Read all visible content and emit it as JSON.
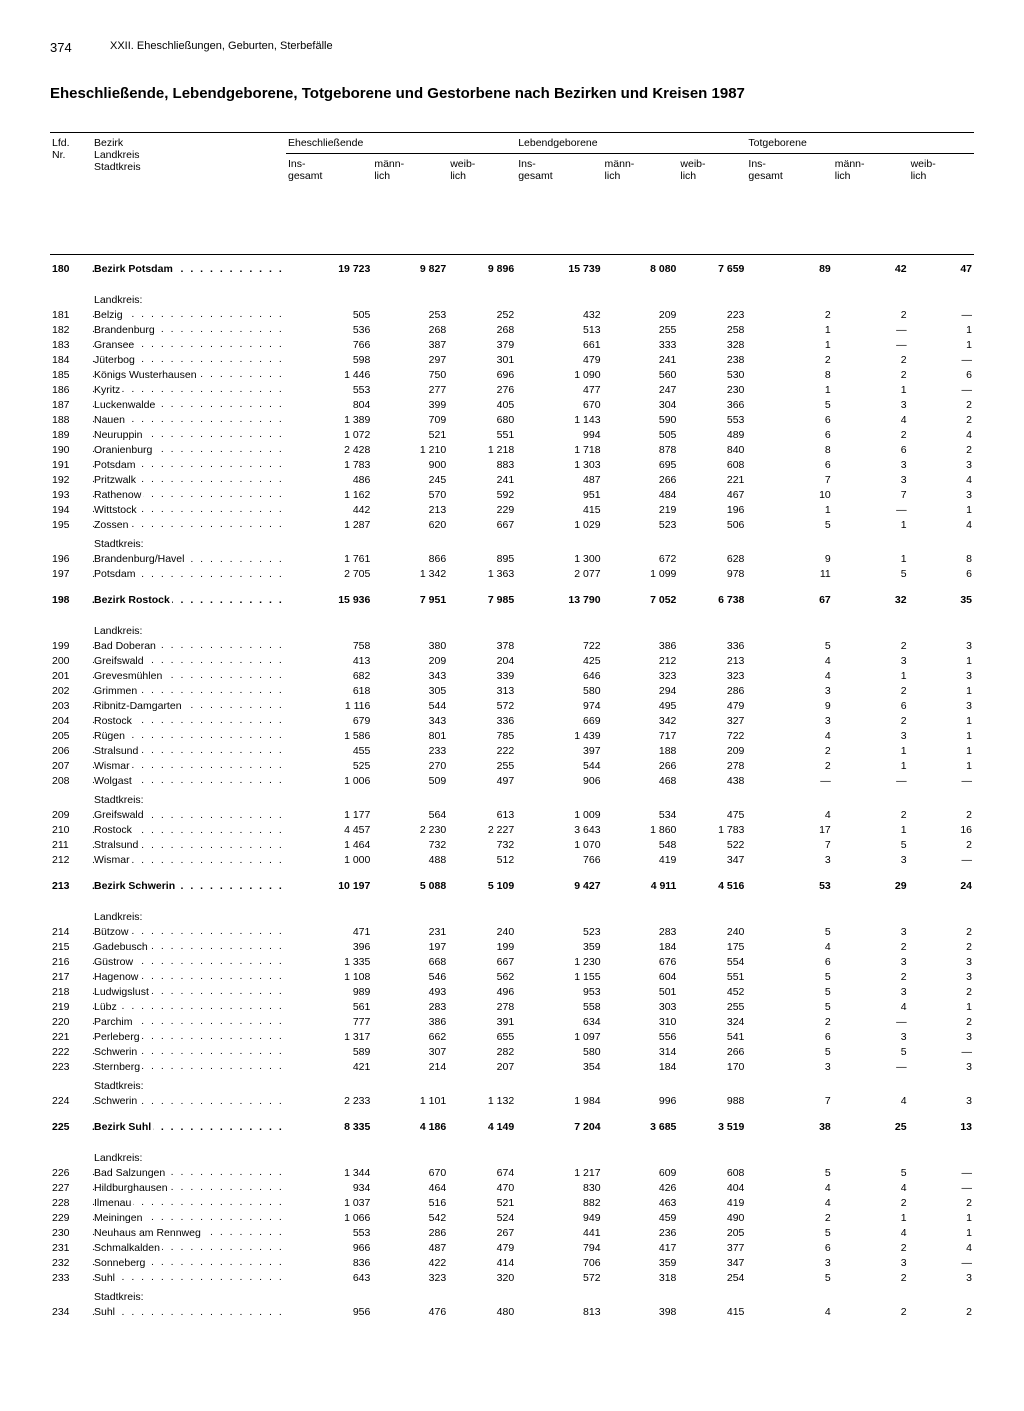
{
  "page_number": "374",
  "chapter": "XXII. Eheschließungen, Geburten, Sterbefälle",
  "title": "Eheschließende, Lebendgeborene, Totgeborene und Gestorbene nach Bezirken und Kreisen 1987",
  "header": {
    "col_lfd": "Lfd.\nNr.",
    "col_bezirk": "Bezirk\nLandkreis\nStadtkreis",
    "group1": "Eheschließende",
    "group2": "Lebendgeborene",
    "group3": "Totgeborene",
    "sub_ins": "Ins-\ngesamt",
    "sub_mann": "männ-\nlich",
    "sub_weib": "weib-\nlich"
  },
  "rows": [
    {
      "type": "data-start",
      "lfd": "180",
      "name": "Bezirk Potsdam",
      "bold": true,
      "dots": true,
      "v": [
        "19 723",
        "9 827",
        "9 896",
        "15 739",
        "8 080",
        "7 659",
        "89",
        "42",
        "47"
      ]
    },
    {
      "type": "spacer"
    },
    {
      "type": "label",
      "name": "Landkreis:"
    },
    {
      "type": "data",
      "lfd": "181",
      "name": "Belzig",
      "dots": true,
      "v": [
        "505",
        "253",
        "252",
        "432",
        "209",
        "223",
        "2",
        "2",
        "—"
      ]
    },
    {
      "type": "data",
      "lfd": "182",
      "name": "Brandenburg",
      "dots": true,
      "v": [
        "536",
        "268",
        "268",
        "513",
        "255",
        "258",
        "1",
        "—",
        "1"
      ]
    },
    {
      "type": "data",
      "lfd": "183",
      "name": "Gransee",
      "dots": true,
      "v": [
        "766",
        "387",
        "379",
        "661",
        "333",
        "328",
        "1",
        "—",
        "1"
      ]
    },
    {
      "type": "data",
      "lfd": "184",
      "name": "Jüterbog",
      "dots": true,
      "v": [
        "598",
        "297",
        "301",
        "479",
        "241",
        "238",
        "2",
        "2",
        "—"
      ]
    },
    {
      "type": "data",
      "lfd": "185",
      "name": "Königs Wusterhausen",
      "dots": true,
      "v": [
        "1 446",
        "750",
        "696",
        "1 090",
        "560",
        "530",
        "8",
        "2",
        "6"
      ]
    },
    {
      "type": "data",
      "lfd": "186",
      "name": "Kyritz",
      "dots": true,
      "v": [
        "553",
        "277",
        "276",
        "477",
        "247",
        "230",
        "1",
        "1",
        "—"
      ]
    },
    {
      "type": "data",
      "lfd": "187",
      "name": "Luckenwalde",
      "dots": true,
      "v": [
        "804",
        "399",
        "405",
        "670",
        "304",
        "366",
        "5",
        "3",
        "2"
      ]
    },
    {
      "type": "data",
      "lfd": "188",
      "name": "Nauen",
      "dots": true,
      "v": [
        "1 389",
        "709",
        "680",
        "1 143",
        "590",
        "553",
        "6",
        "4",
        "2"
      ]
    },
    {
      "type": "data",
      "lfd": "189",
      "name": "Neuruppin",
      "dots": true,
      "v": [
        "1 072",
        "521",
        "551",
        "994",
        "505",
        "489",
        "6",
        "2",
        "4"
      ]
    },
    {
      "type": "data",
      "lfd": "190",
      "name": "Oranienburg",
      "dots": true,
      "v": [
        "2 428",
        "1 210",
        "1 218",
        "1 718",
        "878",
        "840",
        "8",
        "6",
        "2"
      ]
    },
    {
      "type": "data",
      "lfd": "191",
      "name": "Potsdam",
      "dots": true,
      "v": [
        "1 783",
        "900",
        "883",
        "1 303",
        "695",
        "608",
        "6",
        "3",
        "3"
      ]
    },
    {
      "type": "data",
      "lfd": "192",
      "name": "Pritzwalk",
      "dots": true,
      "v": [
        "486",
        "245",
        "241",
        "487",
        "266",
        "221",
        "7",
        "3",
        "4"
      ]
    },
    {
      "type": "data",
      "lfd": "193",
      "name": "Rathenow",
      "dots": true,
      "v": [
        "1 162",
        "570",
        "592",
        "951",
        "484",
        "467",
        "10",
        "7",
        "3"
      ]
    },
    {
      "type": "data",
      "lfd": "194",
      "name": "Wittstock",
      "dots": true,
      "v": [
        "442",
        "213",
        "229",
        "415",
        "219",
        "196",
        "1",
        "—",
        "1"
      ]
    },
    {
      "type": "data",
      "lfd": "195",
      "name": "Zossen",
      "dots": true,
      "v": [
        "1 287",
        "620",
        "667",
        "1 029",
        "523",
        "506",
        "5",
        "1",
        "4"
      ]
    },
    {
      "type": "label",
      "name": "Stadtkreis:"
    },
    {
      "type": "data",
      "lfd": "196",
      "name": "Brandenburg/Havel",
      "dots": true,
      "v": [
        "1 761",
        "866",
        "895",
        "1 300",
        "672",
        "628",
        "9",
        "1",
        "8"
      ]
    },
    {
      "type": "data",
      "lfd": "197",
      "name": "Potsdam",
      "dots": true,
      "v": [
        "2 705",
        "1 342",
        "1 363",
        "2 077",
        "1 099",
        "978",
        "11",
        "5",
        "6"
      ]
    },
    {
      "type": "spacer"
    },
    {
      "type": "data",
      "lfd": "198",
      "name": "Bezirk Rostock",
      "bold": true,
      "dots": true,
      "v": [
        "15 936",
        "7 951",
        "7 985",
        "13 790",
        "7 052",
        "6 738",
        "67",
        "32",
        "35"
      ]
    },
    {
      "type": "spacer"
    },
    {
      "type": "label",
      "name": "Landkreis:"
    },
    {
      "type": "data",
      "lfd": "199",
      "name": "Bad Doberan",
      "dots": true,
      "v": [
        "758",
        "380",
        "378",
        "722",
        "386",
        "336",
        "5",
        "2",
        "3"
      ]
    },
    {
      "type": "data",
      "lfd": "200",
      "name": "Greifswald",
      "dots": true,
      "v": [
        "413",
        "209",
        "204",
        "425",
        "212",
        "213",
        "4",
        "3",
        "1"
      ]
    },
    {
      "type": "data",
      "lfd": "201",
      "name": "Grevesmühlen",
      "dots": true,
      "v": [
        "682",
        "343",
        "339",
        "646",
        "323",
        "323",
        "4",
        "1",
        "3"
      ]
    },
    {
      "type": "data",
      "lfd": "202",
      "name": "Grimmen",
      "dots": true,
      "v": [
        "618",
        "305",
        "313",
        "580",
        "294",
        "286",
        "3",
        "2",
        "1"
      ]
    },
    {
      "type": "data",
      "lfd": "203",
      "name": "Ribnitz-Damgarten",
      "dots": true,
      "v": [
        "1 116",
        "544",
        "572",
        "974",
        "495",
        "479",
        "9",
        "6",
        "3"
      ]
    },
    {
      "type": "data",
      "lfd": "204",
      "name": "Rostock",
      "dots": true,
      "v": [
        "679",
        "343",
        "336",
        "669",
        "342",
        "327",
        "3",
        "2",
        "1"
      ]
    },
    {
      "type": "data",
      "lfd": "205",
      "name": "Rügen",
      "dots": true,
      "v": [
        "1 586",
        "801",
        "785",
        "1 439",
        "717",
        "722",
        "4",
        "3",
        "1"
      ]
    },
    {
      "type": "data",
      "lfd": "206",
      "name": "Stralsund",
      "dots": true,
      "v": [
        "455",
        "233",
        "222",
        "397",
        "188",
        "209",
        "2",
        "1",
        "1"
      ]
    },
    {
      "type": "data",
      "lfd": "207",
      "name": "Wismar",
      "dots": true,
      "v": [
        "525",
        "270",
        "255",
        "544",
        "266",
        "278",
        "2",
        "1",
        "1"
      ]
    },
    {
      "type": "data",
      "lfd": "208",
      "name": "Wolgast",
      "dots": true,
      "v": [
        "1 006",
        "509",
        "497",
        "906",
        "468",
        "438",
        "—",
        "—",
        "—"
      ]
    },
    {
      "type": "label",
      "name": "Stadtkreis:"
    },
    {
      "type": "data",
      "lfd": "209",
      "name": "Greifswald",
      "dots": true,
      "v": [
        "1 177",
        "564",
        "613",
        "1 009",
        "534",
        "475",
        "4",
        "2",
        "2"
      ]
    },
    {
      "type": "data",
      "lfd": "210",
      "name": "Rostock",
      "dots": true,
      "v": [
        "4 457",
        "2 230",
        "2 227",
        "3 643",
        "1 860",
        "1 783",
        "17",
        "1",
        "16"
      ]
    },
    {
      "type": "data",
      "lfd": "211",
      "name": "Stralsund",
      "dots": true,
      "v": [
        "1 464",
        "732",
        "732",
        "1 070",
        "548",
        "522",
        "7",
        "5",
        "2"
      ]
    },
    {
      "type": "data",
      "lfd": "212",
      "name": "Wismar",
      "dots": true,
      "v": [
        "1 000",
        "488",
        "512",
        "766",
        "419",
        "347",
        "3",
        "3",
        "—"
      ]
    },
    {
      "type": "spacer"
    },
    {
      "type": "data",
      "lfd": "213",
      "name": "Bezirk Schwerin",
      "bold": true,
      "dots": true,
      "v": [
        "10 197",
        "5 088",
        "5 109",
        "9 427",
        "4 911",
        "4 516",
        "53",
        "29",
        "24"
      ]
    },
    {
      "type": "spacer"
    },
    {
      "type": "label",
      "name": "Landkreis:"
    },
    {
      "type": "data",
      "lfd": "214",
      "name": "Bützow",
      "dots": true,
      "v": [
        "471",
        "231",
        "240",
        "523",
        "283",
        "240",
        "5",
        "3",
        "2"
      ]
    },
    {
      "type": "data",
      "lfd": "215",
      "name": "Gadebusch",
      "dots": true,
      "v": [
        "396",
        "197",
        "199",
        "359",
        "184",
        "175",
        "4",
        "2",
        "2"
      ]
    },
    {
      "type": "data",
      "lfd": "216",
      "name": "Güstrow",
      "dots": true,
      "v": [
        "1 335",
        "668",
        "667",
        "1 230",
        "676",
        "554",
        "6",
        "3",
        "3"
      ]
    },
    {
      "type": "data",
      "lfd": "217",
      "name": "Hagenow",
      "dots": true,
      "v": [
        "1 108",
        "546",
        "562",
        "1 155",
        "604",
        "551",
        "5",
        "2",
        "3"
      ]
    },
    {
      "type": "data",
      "lfd": "218",
      "name": "Ludwigslust",
      "dots": true,
      "v": [
        "989",
        "493",
        "496",
        "953",
        "501",
        "452",
        "5",
        "3",
        "2"
      ]
    },
    {
      "type": "data",
      "lfd": "219",
      "name": "Lübz",
      "dots": true,
      "v": [
        "561",
        "283",
        "278",
        "558",
        "303",
        "255",
        "5",
        "4",
        "1"
      ]
    },
    {
      "type": "data",
      "lfd": "220",
      "name": "Parchim",
      "dots": true,
      "v": [
        "777",
        "386",
        "391",
        "634",
        "310",
        "324",
        "2",
        "—",
        "2"
      ]
    },
    {
      "type": "data",
      "lfd": "221",
      "name": "Perleberg",
      "dots": true,
      "v": [
        "1 317",
        "662",
        "655",
        "1 097",
        "556",
        "541",
        "6",
        "3",
        "3"
      ]
    },
    {
      "type": "data",
      "lfd": "222",
      "name": "Schwerin",
      "dots": true,
      "v": [
        "589",
        "307",
        "282",
        "580",
        "314",
        "266",
        "5",
        "5",
        "—"
      ]
    },
    {
      "type": "data",
      "lfd": "223",
      "name": "Sternberg",
      "dots": true,
      "v": [
        "421",
        "214",
        "207",
        "354",
        "184",
        "170",
        "3",
        "—",
        "3"
      ]
    },
    {
      "type": "label",
      "name": "Stadtkreis:"
    },
    {
      "type": "data",
      "lfd": "224",
      "name": "Schwerin",
      "dots": true,
      "v": [
        "2 233",
        "1 101",
        "1 132",
        "1 984",
        "996",
        "988",
        "7",
        "4",
        "3"
      ]
    },
    {
      "type": "spacer"
    },
    {
      "type": "data",
      "lfd": "225",
      "name": "Bezirk Suhl",
      "bold": true,
      "dots": true,
      "v": [
        "8 335",
        "4 186",
        "4 149",
        "7 204",
        "3 685",
        "3 519",
        "38",
        "25",
        "13"
      ]
    },
    {
      "type": "spacer"
    },
    {
      "type": "label",
      "name": "Landkreis:"
    },
    {
      "type": "data",
      "lfd": "226",
      "name": "Bad Salzungen",
      "dots": true,
      "v": [
        "1 344",
        "670",
        "674",
        "1 217",
        "609",
        "608",
        "5",
        "5",
        "—"
      ]
    },
    {
      "type": "data",
      "lfd": "227",
      "name": "Hildburghausen",
      "dots": true,
      "v": [
        "934",
        "464",
        "470",
        "830",
        "426",
        "404",
        "4",
        "4",
        "—"
      ]
    },
    {
      "type": "data",
      "lfd": "228",
      "name": "Ilmenau",
      "dots": true,
      "v": [
        "1 037",
        "516",
        "521",
        "882",
        "463",
        "419",
        "4",
        "2",
        "2"
      ]
    },
    {
      "type": "data",
      "lfd": "229",
      "name": "Meiningen",
      "dots": true,
      "v": [
        "1 066",
        "542",
        "524",
        "949",
        "459",
        "490",
        "2",
        "1",
        "1"
      ]
    },
    {
      "type": "data",
      "lfd": "230",
      "name": "Neuhaus am Rennweg",
      "dots": true,
      "v": [
        "553",
        "286",
        "267",
        "441",
        "236",
        "205",
        "5",
        "4",
        "1"
      ]
    },
    {
      "type": "data",
      "lfd": "231",
      "name": "Schmalkalden",
      "dots": true,
      "v": [
        "966",
        "487",
        "479",
        "794",
        "417",
        "377",
        "6",
        "2",
        "4"
      ]
    },
    {
      "type": "data",
      "lfd": "232",
      "name": "Sonneberg",
      "dots": true,
      "v": [
        "836",
        "422",
        "414",
        "706",
        "359",
        "347",
        "3",
        "3",
        "—"
      ]
    },
    {
      "type": "data",
      "lfd": "233",
      "name": "Suhl",
      "dots": true,
      "v": [
        "643",
        "323",
        "320",
        "572",
        "318",
        "254",
        "5",
        "2",
        "3"
      ]
    },
    {
      "type": "label",
      "name": "Stadtkreis:"
    },
    {
      "type": "data",
      "lfd": "234",
      "name": "Suhl",
      "dots": true,
      "v": [
        "956",
        "476",
        "480",
        "813",
        "398",
        "415",
        "4",
        "2",
        "2"
      ]
    }
  ]
}
